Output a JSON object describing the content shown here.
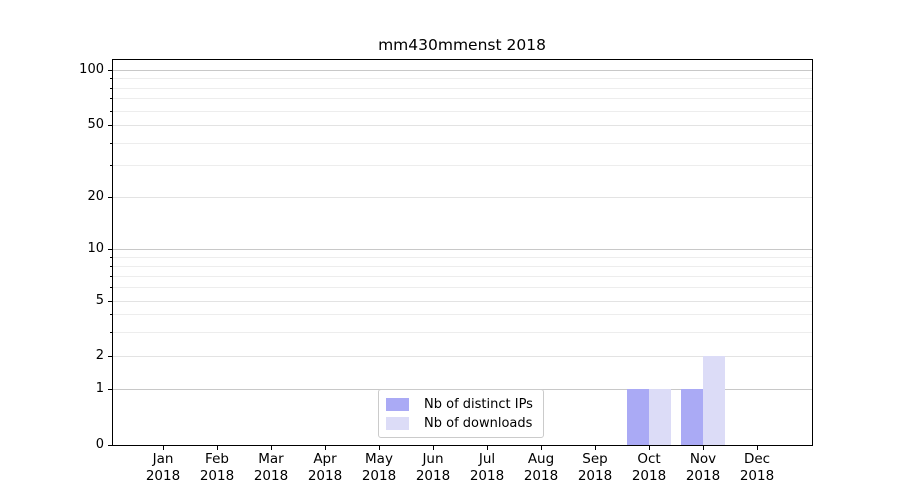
{
  "title": "mm430mmenst 2018",
  "colors": {
    "background": "#ffffff",
    "axis": "#000000",
    "bar_distinct_ips": "#aaaaf5",
    "bar_downloads": "#dcdcf7",
    "major_gridline": "#c8c8c8",
    "mid_gridline": "#e3e3e3",
    "minor_gridline": "#ededed",
    "legend_border": "#cbcbcb",
    "text": "#000000"
  },
  "chart_data": {
    "type": "bar",
    "title": "mm430mmenst 2018",
    "categories": [
      "Jan 2018",
      "Feb 2018",
      "Mar 2018",
      "Apr 2018",
      "May 2018",
      "Jun 2018",
      "Jul 2018",
      "Aug 2018",
      "Sep 2018",
      "Oct 2018",
      "Nov 2018",
      "Dec 2018"
    ],
    "x_tick_months": [
      "Jan",
      "Feb",
      "Mar",
      "Apr",
      "May",
      "Jun",
      "Jul",
      "Aug",
      "Sep",
      "Oct",
      "Nov",
      "Dec"
    ],
    "x_tick_year": "2018",
    "series": [
      {
        "name": "Nb of distinct IPs",
        "color": "#aaaaf5",
        "values": [
          0,
          0,
          0,
          0,
          0,
          0,
          0,
          0,
          0,
          1,
          1,
          0
        ]
      },
      {
        "name": "Nb of downloads",
        "color": "#dcdcf7",
        "values": [
          0,
          0,
          0,
          0,
          0,
          0,
          0,
          0,
          0,
          1,
          2,
          0
        ]
      }
    ],
    "xlabel": "",
    "ylabel": "",
    "y_axis": {
      "scale": "log-ladder (1-2-5 steps, linear below 1)",
      "major_ticks": [
        0,
        1,
        2,
        5,
        10,
        20,
        50,
        100
      ],
      "emphasized_gridlines": [
        1,
        10,
        100
      ],
      "minor_gridlines": [
        3,
        4,
        6,
        7,
        8,
        9,
        30,
        40,
        60,
        70,
        80,
        90
      ],
      "ylim": [
        0,
        100
      ]
    },
    "grid": true,
    "legend_position": "bottom-center",
    "legend_entries": [
      "Nb of distinct IPs",
      "Nb of downloads"
    ]
  }
}
